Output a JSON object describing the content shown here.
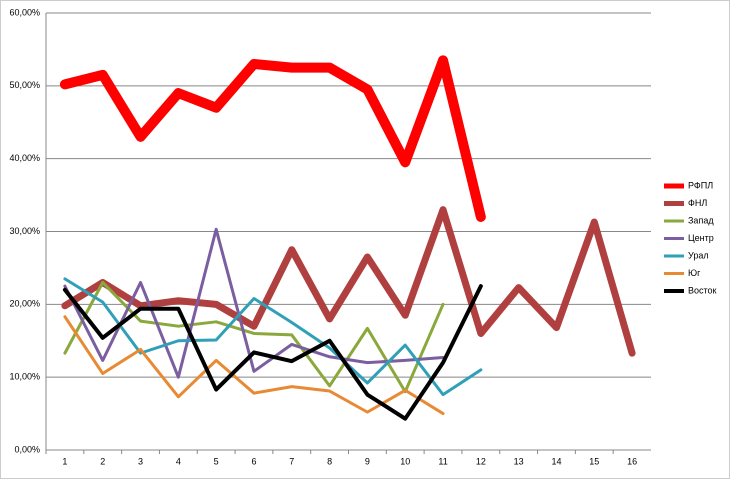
{
  "chart_data": {
    "type": "line",
    "categories": [
      "1",
      "2",
      "3",
      "4",
      "5",
      "6",
      "7",
      "8",
      "9",
      "10",
      "11",
      "12",
      "13",
      "14",
      "15",
      "16"
    ],
    "ylim": [
      0,
      60
    ],
    "yticks": [
      {
        "value": 0,
        "label": "0,00%"
      },
      {
        "value": 10,
        "label": "10,00%"
      },
      {
        "value": 20,
        "label": "20,00%"
      },
      {
        "value": 30,
        "label": "30,00%"
      },
      {
        "value": 40,
        "label": "40,00%"
      },
      {
        "value": 50,
        "label": "50,00%"
      },
      {
        "value": 60,
        "label": "60,00%"
      }
    ],
    "grid": true,
    "legend": "right",
    "series": [
      {
        "name": "РФПЛ",
        "color": "#ff0000",
        "line_width": 10,
        "values": [
          50.2,
          51.5,
          43,
          49,
          47,
          53,
          52.5,
          52.5,
          49.5,
          39.5,
          53.5,
          32,
          null,
          null,
          null,
          null
        ]
      },
      {
        "name": "ФНЛ",
        "color": "#b04040",
        "line_width": 7,
        "values": [
          19.8,
          23,
          19.8,
          20.5,
          20,
          17,
          27.5,
          18,
          26.5,
          18.5,
          33,
          16,
          22.3,
          16.8,
          31.3,
          13.3
        ]
      },
      {
        "name": "Запад",
        "color": "#8aa83c",
        "line_width": 3,
        "values": [
          13.3,
          23,
          17.7,
          17,
          17.6,
          16,
          15.8,
          8.8,
          16.7,
          8,
          20,
          null,
          null,
          null,
          null,
          null
        ]
      },
      {
        "name": "Центр",
        "color": "#7b5ea0",
        "line_width": 3,
        "values": [
          22.5,
          12.3,
          23,
          10,
          30.3,
          10.8,
          14.5,
          12.8,
          12,
          12.3,
          12.7,
          null,
          null,
          null,
          null,
          null
        ]
      },
      {
        "name": "Урал",
        "color": "#2fa0b8",
        "line_width": 3,
        "values": [
          23.5,
          20.3,
          13.3,
          15,
          15.1,
          20.8,
          17.5,
          14,
          9.2,
          14.4,
          7.6,
          11,
          null,
          null,
          null,
          null
        ]
      },
      {
        "name": "Юг",
        "color": "#e88a33",
        "line_width": 3,
        "values": [
          18.3,
          10.5,
          13.8,
          7.3,
          12.3,
          7.8,
          8.7,
          8.1,
          5.2,
          8.2,
          5,
          null,
          null,
          null,
          null,
          null
        ]
      },
      {
        "name": "Восток",
        "color": "#000000",
        "line_width": 4,
        "values": [
          22,
          15.4,
          19.4,
          19.4,
          8.3,
          13.4,
          12.2,
          15,
          7.6,
          4.3,
          12,
          22.5,
          null,
          null,
          null,
          null
        ]
      }
    ]
  }
}
